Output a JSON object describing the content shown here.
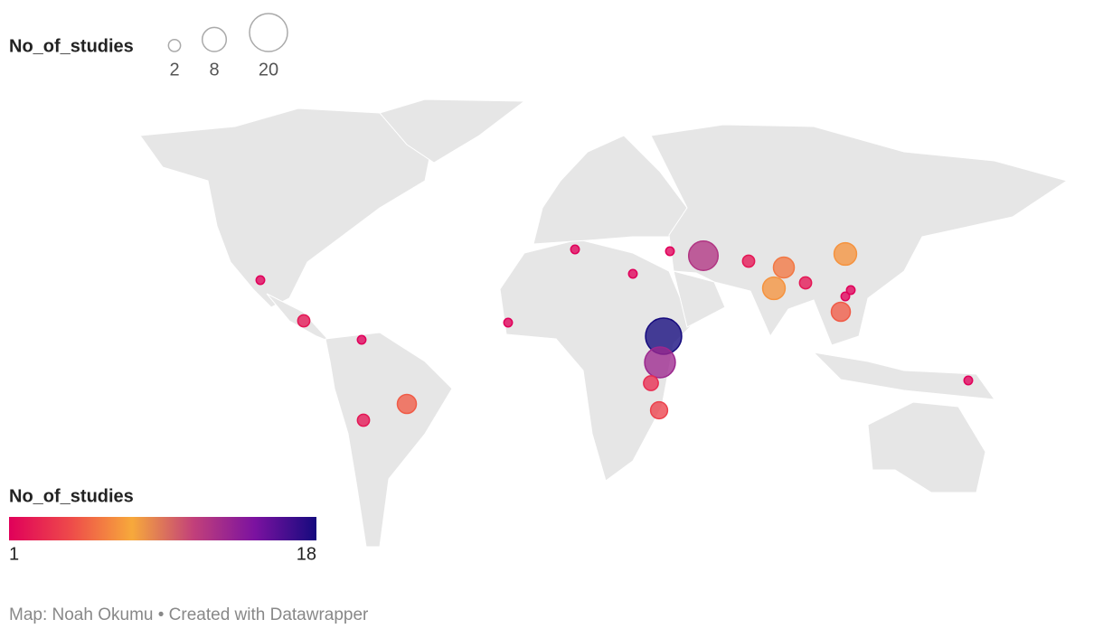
{
  "chart_data": {
    "type": "symbol-map",
    "size_legend": {
      "title": "No_of_studies",
      "values": [
        2,
        8,
        20
      ]
    },
    "color_legend": {
      "title": "No_of_studies",
      "ticks": [
        1,
        18
      ],
      "colors": [
        "#e0005a",
        "#ee4a4a",
        "#f7a93b",
        "#c2407a",
        "#7b12a0",
        "#150a7e"
      ]
    },
    "values": [
      18,
      13,
      12,
      7,
      7,
      6,
      5,
      5,
      4,
      3,
      2,
      2,
      2,
      2,
      1,
      1,
      1,
      1,
      1,
      1,
      1,
      1,
      1
    ],
    "footer": "Map: Noah Okumu • Created with Datawrapper"
  }
}
